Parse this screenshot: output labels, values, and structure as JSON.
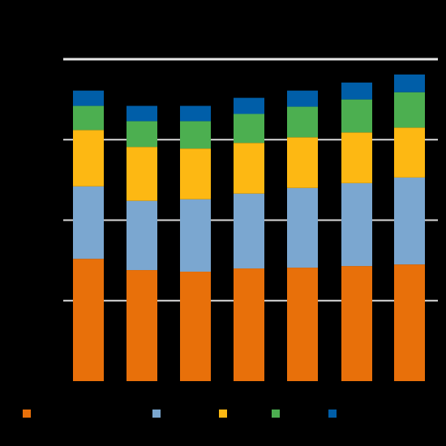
{
  "chart_data": {
    "type": "bar",
    "stacked": true,
    "title": "",
    "unit_label": "",
    "xlabel": "",
    "ylabel": "",
    "categories": [
      "",
      "",
      "",
      "",
      "",
      "",
      ""
    ],
    "ylim": [
      0,
      4
    ],
    "gridlines": [
      1,
      2,
      3
    ],
    "reference_line": 4,
    "grid": true,
    "legend_position": "bottom",
    "background": "#000000",
    "series": [
      {
        "color": "#E8700A",
        "values": [
          1.52,
          1.38,
          1.36,
          1.4,
          1.41,
          1.43,
          1.45
        ]
      },
      {
        "color": "#7BA7D0",
        "values": [
          0.9,
          0.86,
          0.9,
          0.93,
          0.99,
          1.03,
          1.08
        ]
      },
      {
        "color": "#FDB813",
        "values": [
          0.7,
          0.67,
          0.63,
          0.63,
          0.63,
          0.63,
          0.62
        ]
      },
      {
        "color": "#4CAF50",
        "values": [
          0.3,
          0.32,
          0.34,
          0.36,
          0.38,
          0.41,
          0.44
        ]
      },
      {
        "color": "#005EA8",
        "values": [
          0.19,
          0.19,
          0.19,
          0.2,
          0.2,
          0.21,
          0.22
        ]
      }
    ]
  }
}
